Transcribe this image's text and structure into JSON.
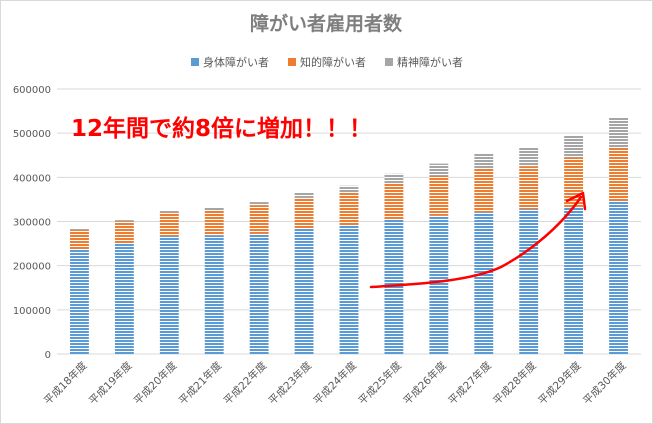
{
  "chart_data": {
    "type": "bar",
    "stacked": true,
    "title": "障がい者雇用者数",
    "categories": [
      "平成18年度",
      "平成19年度",
      "平成20年度",
      "平成21年度",
      "平成22年度",
      "平成23年度",
      "平成24年度",
      "平成25年度",
      "平成26年度",
      "平成27年度",
      "平成28年度",
      "平成29年度",
      "平成30年度"
    ],
    "series": [
      {
        "name": "身体障がい者",
        "color": "#5b9bd5",
        "values": [
          237000,
          251000,
          267000,
          269000,
          272000,
          285000,
          291000,
          304000,
          313000,
          321000,
          328000,
          333000,
          346000
        ]
      },
      {
        "name": "知的障がい者",
        "color": "#ed7d31",
        "values": [
          44000,
          49000,
          54000,
          57000,
          65000,
          69000,
          75000,
          83000,
          90000,
          98000,
          97000,
          112000,
          122000
        ]
      },
      {
        "name": "精神障がい者",
        "color": "#a5a5a5",
        "values": [
          2000,
          3000,
          4000,
          6000,
          7000,
          11000,
          15000,
          21000,
          28000,
          35000,
          42000,
          50000,
          67000
        ]
      }
    ],
    "ylim": [
      0,
      600000
    ],
    "yticks": [
      "0",
      "100000",
      "200000",
      "300000",
      "400000",
      "500000",
      "600000"
    ],
    "legend_position": "top",
    "grid": true,
    "annotation": {
      "text": "12年間で約8倍に増加！！！",
      "color": "#ff0000",
      "arrow": "hand-drawn red arrow rising from 平成25年度 to 平成29年度"
    }
  }
}
